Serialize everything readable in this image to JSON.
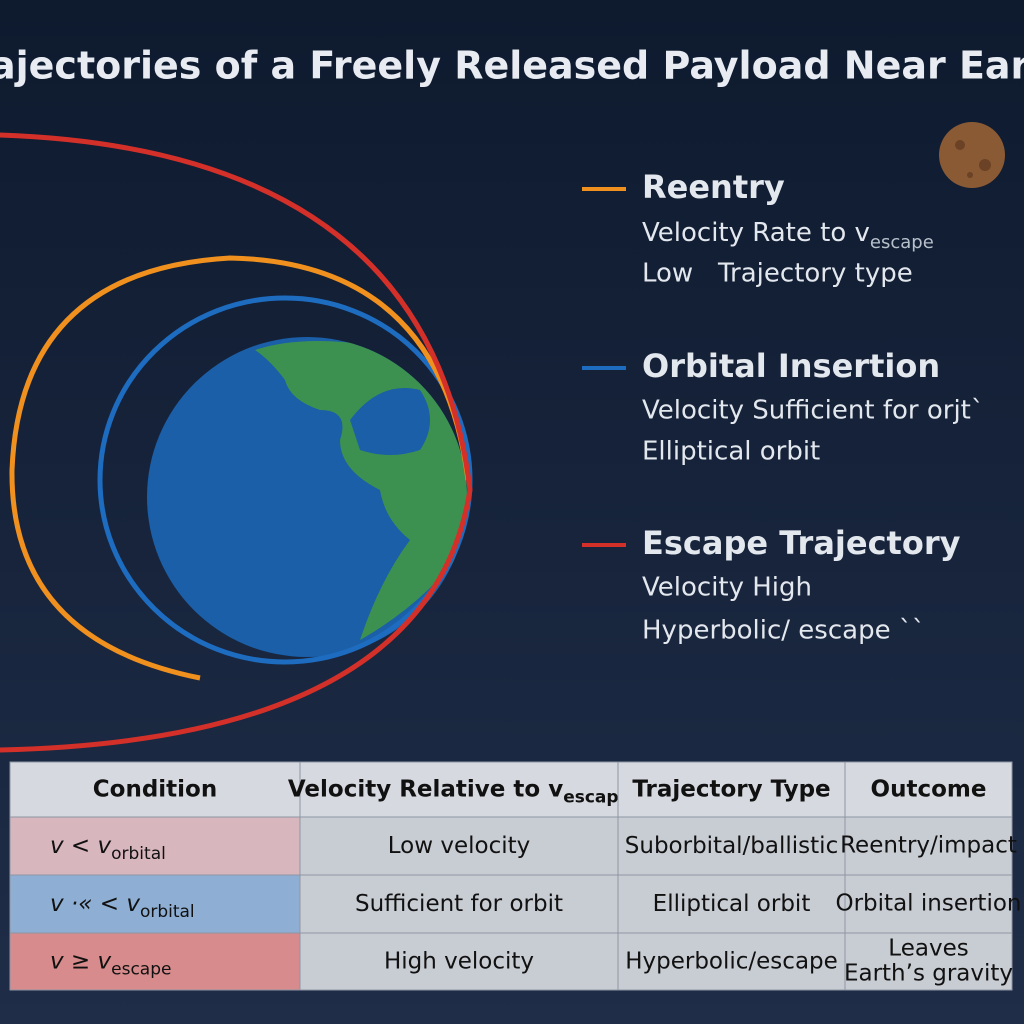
{
  "title": "Trajectories of a Freely Released Payload Near Earth",
  "legend": [
    {
      "heading": "Reentry",
      "line1": "Velocity Rate to v",
      "line1_sub": "escape",
      "line2": "Low   Trajectory type"
    },
    {
      "heading": "Orbital Insertion",
      "line1": "Velocity Sufficient for orjt`",
      "line2": "Elliptical orbit"
    },
    {
      "heading": "Escape Trajectory",
      "line1": "Velocity High",
      "line2": "Hyperbolic/ escape ``"
    }
  ],
  "table": {
    "header": [
      {
        "text": "Condition"
      },
      {
        "text": "Velocity Relative to v",
        "sub": "escape"
      },
      {
        "text": "Trajectory Type"
      },
      {
        "text": "Outcome"
      }
    ],
    "rows": [
      {
        "condition": "v < v",
        "condition_sub": "orbital",
        "velocity": "Low velocity",
        "type": "Suborbital/ballistic",
        "outcome": [
          "Reentry/impact"
        ]
      },
      {
        "condition": "v ·« < v",
        "condition_sub": "orbital",
        "velocity": "Sufficient for orbit",
        "type": "Elliptical orbit",
        "outcome": [
          "Orbital insertion"
        ]
      },
      {
        "condition": "v ≥ v",
        "condition_sub": "escape",
        "velocity": "High velocity",
        "type": "Hyperbolic/escape",
        "outcome": [
          "Leaves",
          "Earth’s gravity"
        ]
      }
    ]
  }
}
